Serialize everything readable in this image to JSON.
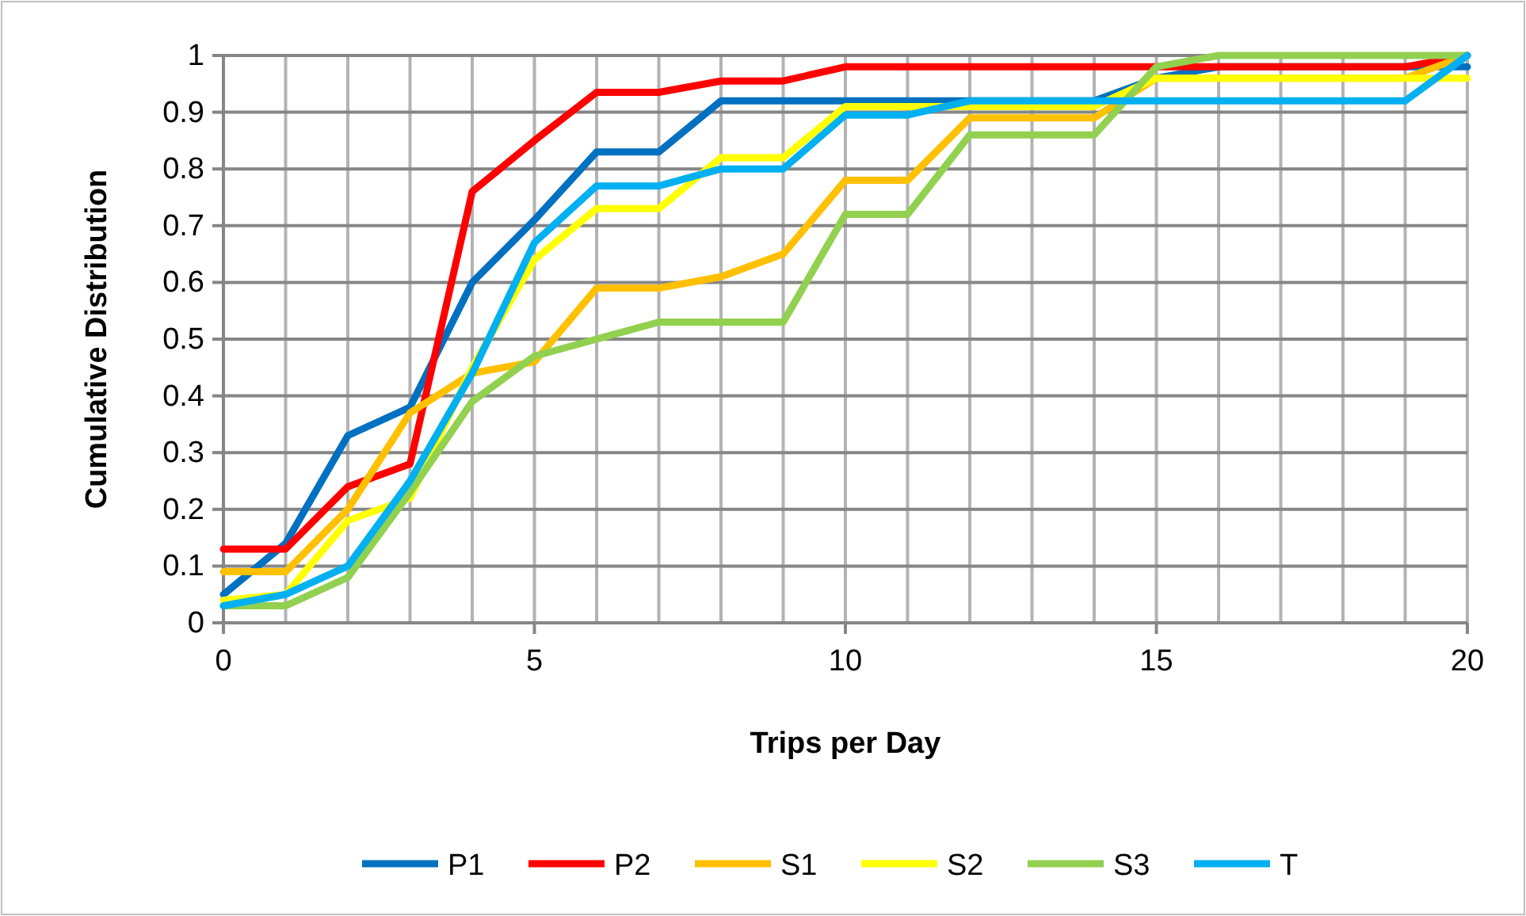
{
  "chart_data": {
    "type": "line",
    "xlabel": "Trips per Day",
    "ylabel": "Cumulative Distribution",
    "x": [
      0,
      1,
      2,
      3,
      4,
      5,
      6,
      7,
      8,
      9,
      10,
      11,
      12,
      13,
      14,
      15,
      16,
      17,
      18,
      19,
      20
    ],
    "xlim": [
      0,
      20
    ],
    "xticks": [
      0,
      5,
      10,
      15,
      20
    ],
    "ylim": [
      0,
      1
    ],
    "yticks": [
      0,
      0.1,
      0.2,
      0.3,
      0.4,
      0.5,
      0.6,
      0.7,
      0.8,
      0.9,
      1
    ],
    "grid": true,
    "legend": "bottom",
    "marker": "none",
    "line_style": "solid",
    "series": [
      {
        "name": "P1",
        "color": "#0070c0",
        "values": [
          0.05,
          0.14,
          0.33,
          0.38,
          0.6,
          0.71,
          0.83,
          0.83,
          0.92,
          0.92,
          0.92,
          0.92,
          0.92,
          0.92,
          0.92,
          0.96,
          0.98,
          0.98,
          0.98,
          0.98,
          0.98
        ]
      },
      {
        "name": "P2",
        "color": "#ff0000",
        "values": [
          0.13,
          0.13,
          0.24,
          0.28,
          0.76,
          0.85,
          0.935,
          0.935,
          0.955,
          0.955,
          0.98,
          0.98,
          0.98,
          0.98,
          0.98,
          0.98,
          0.98,
          0.98,
          0.98,
          0.98,
          1
        ]
      },
      {
        "name": "S1",
        "color": "#ffc000",
        "values": [
          0.09,
          0.09,
          0.2,
          0.37,
          0.44,
          0.46,
          0.59,
          0.59,
          0.61,
          0.65,
          0.78,
          0.78,
          0.89,
          0.89,
          0.89,
          0.96,
          0.96,
          0.96,
          0.96,
          0.96,
          1
        ]
      },
      {
        "name": "S2",
        "color": "#ffff00",
        "values": [
          0.04,
          0.05,
          0.18,
          0.22,
          0.45,
          0.64,
          0.73,
          0.73,
          0.82,
          0.82,
          0.91,
          0.91,
          0.91,
          0.91,
          0.91,
          0.96,
          0.96,
          0.96,
          0.96,
          0.96,
          0.96
        ]
      },
      {
        "name": "S3",
        "color": "#92d050",
        "values": [
          0.03,
          0.03,
          0.08,
          0.23,
          0.39,
          0.47,
          0.5,
          0.53,
          0.53,
          0.53,
          0.72,
          0.72,
          0.86,
          0.86,
          0.86,
          0.98,
          1,
          1,
          1,
          1,
          1
        ]
      },
      {
        "name": "T",
        "color": "#00b0f0",
        "values": [
          0.03,
          0.05,
          0.1,
          0.25,
          0.44,
          0.67,
          0.77,
          0.77,
          0.8,
          0.8,
          0.895,
          0.895,
          0.92,
          0.92,
          0.92,
          0.92,
          0.92,
          0.92,
          0.92,
          0.92,
          1
        ]
      }
    ]
  }
}
